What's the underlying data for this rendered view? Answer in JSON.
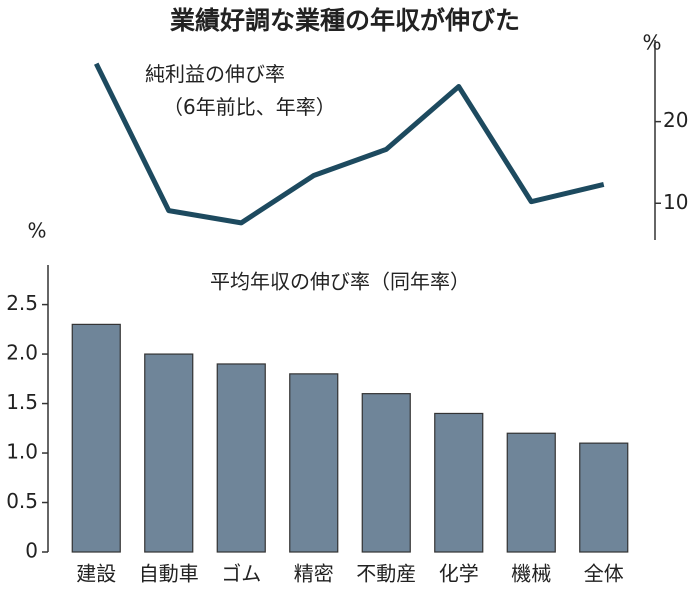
{
  "chart_data": {
    "type": "bar",
    "title": "業績好調な業種の年収が伸びた",
    "categories": [
      "建設",
      "自動車",
      "ゴム",
      "精密",
      "不動産",
      "化学",
      "機械",
      "全体"
    ],
    "y_unit": "%",
    "y2_unit": "%",
    "ylim": [
      0,
      2.9
    ],
    "yticks": [
      0,
      0.5,
      {
        "value": 1,
        "label": "1.0"
      },
      1.5,
      {
        "value": 2,
        "label": "2.0"
      },
      2.5
    ],
    "y2lim": [
      5.5,
      30
    ],
    "y2ticks": [
      10,
      20
    ],
    "series": [
      {
        "name": "平均年収の伸び率（同年率）",
        "type": "bar",
        "color": "#6f8599",
        "values": [
          2.3,
          2.0,
          1.9,
          1.8,
          1.6,
          1.4,
          1.2,
          1.1
        ]
      },
      {
        "name": "純利益の伸び率（6年前比、年率）",
        "type": "line",
        "axis": "y2",
        "color": "#1d4a5f",
        "values": [
          27.1,
          9.1,
          7.6,
          13.4,
          16.6,
          24.3,
          10.2,
          12.3
        ]
      }
    ]
  }
}
